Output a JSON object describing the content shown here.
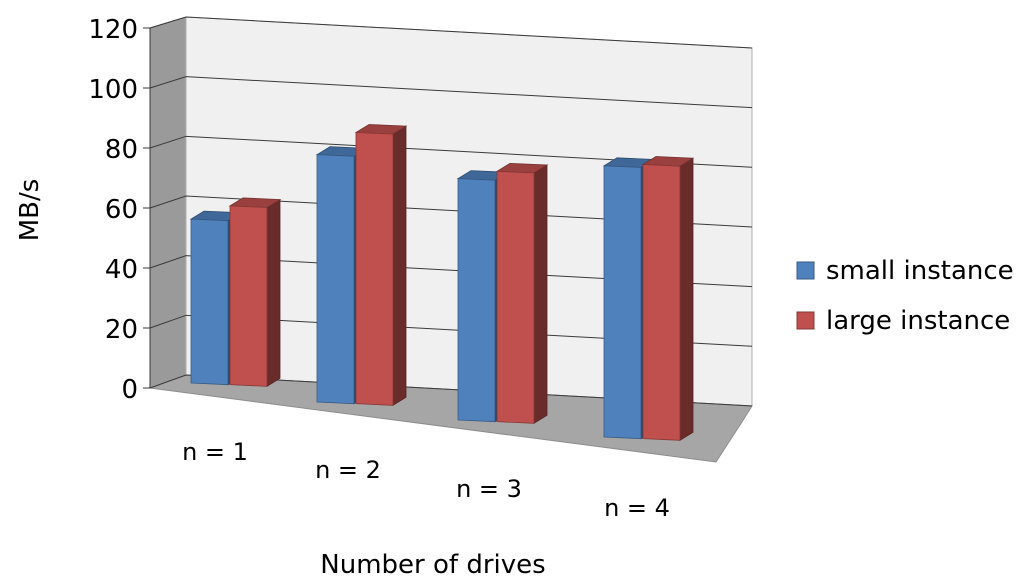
{
  "chart_data": {
    "type": "bar",
    "style": "3d-clustered-column",
    "categories": [
      "n = 1",
      "n = 2",
      "n = 3",
      "n = 4"
    ],
    "series": [
      {
        "name": "small instance",
        "values": [
          55,
          83,
          81,
          91
        ],
        "color": "#4f81bd"
      },
      {
        "name": "large instance",
        "values": [
          60,
          91,
          84,
          92
        ],
        "color": "#c0504d"
      }
    ],
    "xlabel": "Number of drives",
    "ylabel": "MB/s",
    "ylim": [
      0,
      120
    ],
    "yticks": [
      0,
      20,
      40,
      60,
      80,
      100,
      120
    ],
    "grid": true,
    "legend_position": "right"
  }
}
